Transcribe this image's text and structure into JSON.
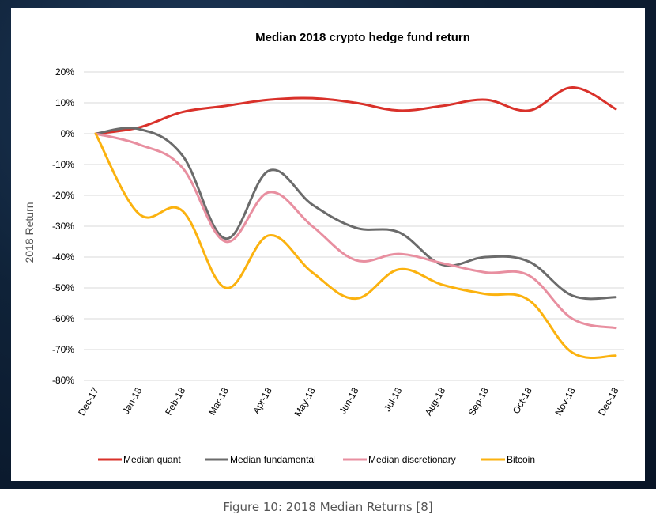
{
  "caption": "Figure 10: 2018 Median Returns [8]",
  "chart_data": {
    "type": "line",
    "title": "Median 2018 crypto hedge fund return",
    "xlabel": "",
    "ylabel": "2018 Return",
    "categories": [
      "Dec-17",
      "Jan-18",
      "Feb-18",
      "Mar-18",
      "Apr-18",
      "May-18",
      "Jun-18",
      "Jul-18",
      "Aug-18",
      "Sep-18",
      "Oct-18",
      "Nov-18",
      "Dec-18"
    ],
    "ylim": [
      -80,
      20
    ],
    "yticks": [
      20,
      10,
      0,
      -10,
      -20,
      -30,
      -40,
      -50,
      -60,
      -70,
      -80
    ],
    "ytick_labels": [
      "20%",
      "10%",
      "0%",
      "-10%",
      "-20%",
      "-30%",
      "-40%",
      "-50%",
      "-60%",
      "-70%",
      "-80%"
    ],
    "grid": "horizontal",
    "legend_position": "bottom",
    "series": [
      {
        "name": "Median quant",
        "color": "#d9312a",
        "values": [
          0,
          2,
          7,
          9,
          11,
          11.5,
          10,
          7.5,
          9,
          11,
          7.5,
          15,
          8
        ]
      },
      {
        "name": "Median fundamental",
        "color": "#6b6b6b",
        "values": [
          0,
          1.5,
          -7,
          -34,
          -12,
          -23,
          -30.5,
          -32,
          -42.5,
          -40,
          -41.5,
          -52.5,
          -53
        ]
      },
      {
        "name": "Median discretionary",
        "color": "#e88fa0",
        "values": [
          0,
          -3.5,
          -11,
          -35,
          -19,
          -30,
          -41,
          -39,
          -42,
          -45,
          -46,
          -60,
          -63
        ]
      },
      {
        "name": "Bitcoin",
        "color": "#fbb20f",
        "values": [
          0,
          -26,
          -25,
          -50,
          -33,
          -45,
          -53.5,
          -44,
          -49,
          -52,
          -54,
          -71,
          -72
        ]
      }
    ]
  }
}
